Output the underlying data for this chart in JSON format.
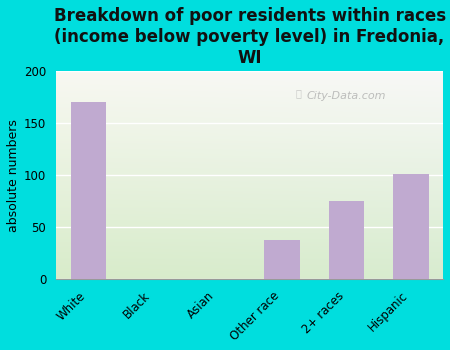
{
  "title": "Breakdown of poor residents within races\n(income below poverty level) in Fredonia,\nWI",
  "categories": [
    "White",
    "Black",
    "Asian",
    "Other race",
    "2+ races",
    "Hispanic"
  ],
  "values": [
    170,
    0,
    0,
    38,
    75,
    101
  ],
  "bar_color": "#c0aad0",
  "background_color": "#00dede",
  "ylabel": "absolute numbers",
  "ylim": [
    0,
    200
  ],
  "yticks": [
    0,
    50,
    100,
    150,
    200
  ],
  "title_fontsize": 12,
  "ylabel_fontsize": 9,
  "tick_fontsize": 8.5,
  "watermark": "City-Data.com",
  "plot_bg_left": "#e8f0d8",
  "plot_bg_right": "#f8f8f0"
}
